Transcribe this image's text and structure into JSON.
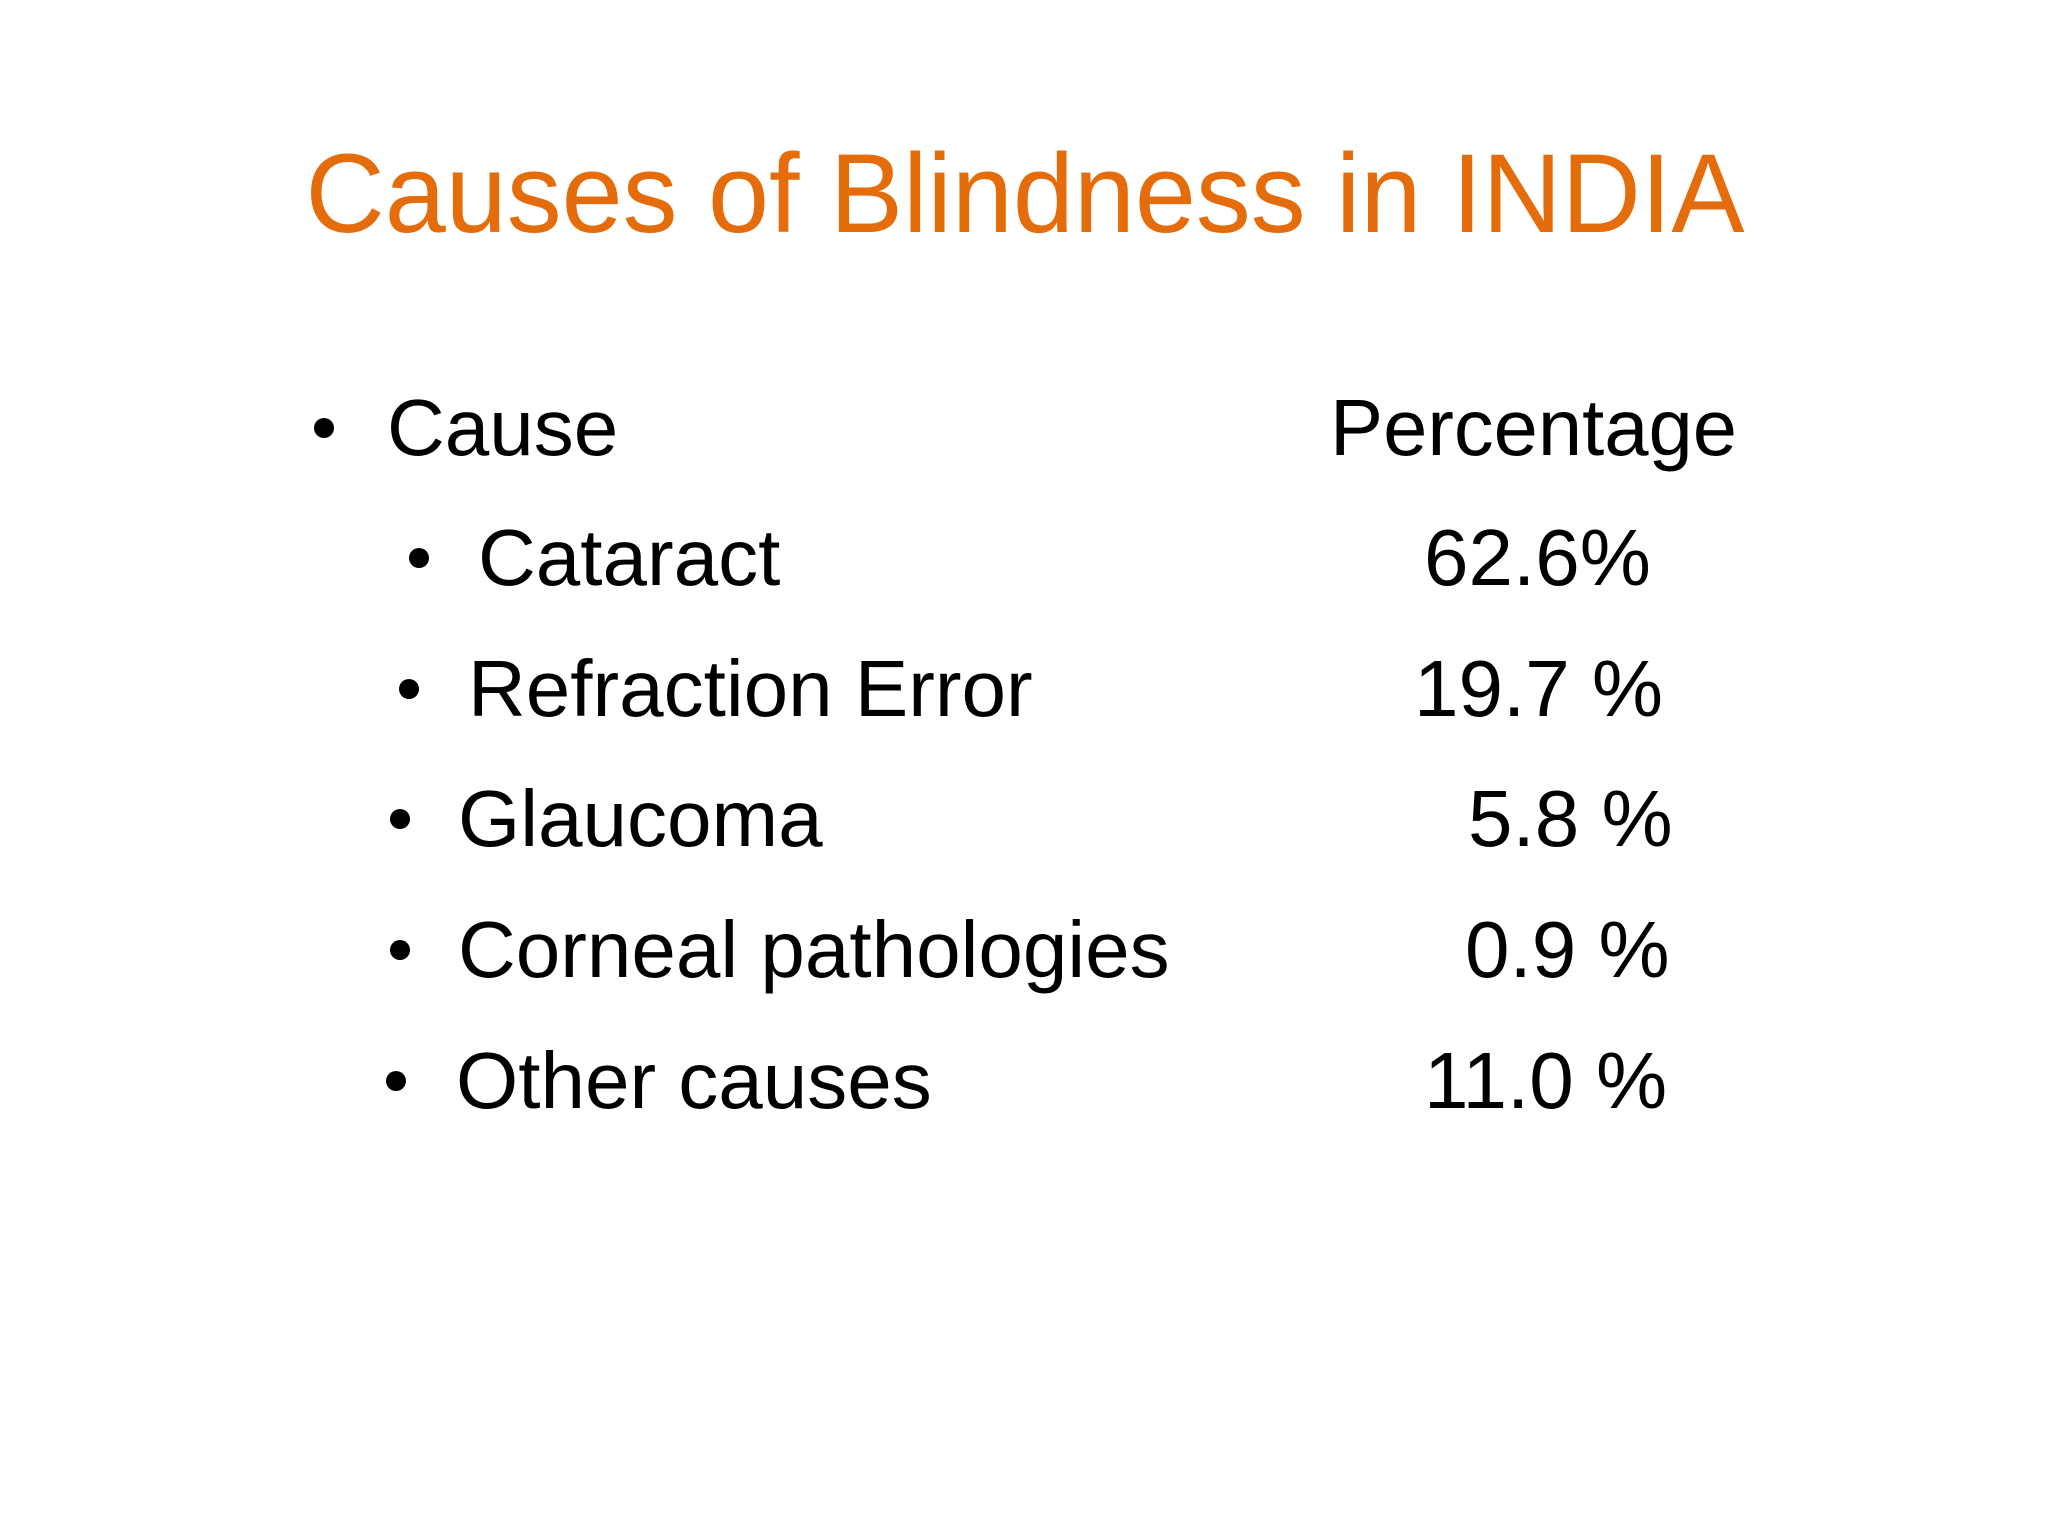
{
  "title": "Causes of Blindness in INDIA",
  "header": {
    "cause": "Cause",
    "percentage": "Percentage"
  },
  "items": [
    {
      "cause": "Cataract",
      "percentage": "62.6%"
    },
    {
      "cause": "Refraction Error",
      "percentage": "19.7 %"
    },
    {
      "cause": "Glaucoma",
      "percentage": "5.8 %"
    },
    {
      "cause": "Corneal pathologies",
      "percentage": "0.9 %"
    },
    {
      "cause": "Other causes",
      "percentage": "11.0 %"
    }
  ]
}
